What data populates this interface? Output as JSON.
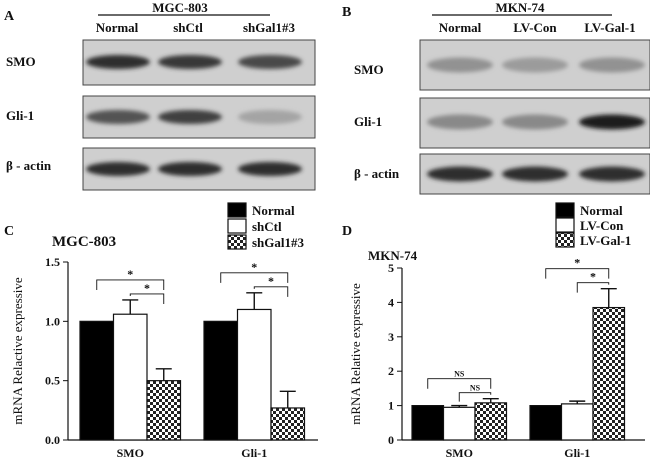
{
  "panelA": {
    "letter": "A",
    "cell_line": "MGC-803",
    "lanes": [
      "Normal",
      "shCtl",
      "shGal1#3"
    ],
    "rows": [
      "SMO",
      "Gli-1",
      "β - actin"
    ],
    "band_intensity": [
      [
        0.85,
        0.8,
        0.7
      ],
      [
        0.65,
        0.75,
        0.2
      ],
      [
        0.85,
        0.85,
        0.85
      ]
    ]
  },
  "panelB": {
    "letter": "B",
    "cell_line": "MKN-74",
    "lanes": [
      "Normal",
      "LV-Con",
      "LV-Gal-1"
    ],
    "rows": [
      "SMO",
      "Gli-1",
      "β - actin"
    ],
    "band_intensity": [
      [
        0.3,
        0.25,
        0.3
      ],
      [
        0.35,
        0.35,
        0.95
      ],
      [
        0.85,
        0.85,
        0.85
      ]
    ]
  },
  "chart_data": [
    {
      "type": "bar",
      "panel": "C",
      "title": "MGC-803",
      "ylabel": "mRNA Relactive expressive",
      "xlabel": "",
      "categories": [
        "SMO",
        "Gli-1"
      ],
      "series": [
        {
          "name": "Normal",
          "values": [
            1.0,
            1.0
          ],
          "errors": [
            0,
            0
          ]
        },
        {
          "name": "shCtl",
          "values": [
            1.06,
            1.1
          ],
          "errors": [
            0.12,
            0.14
          ]
        },
        {
          "name": "shGal1#3",
          "values": [
            0.5,
            0.27
          ],
          "errors": [
            0.1,
            0.14
          ]
        }
      ],
      "ylim": [
        0,
        1.5
      ],
      "yticks": [
        "0.0",
        "0.5",
        "1.0",
        "1.5"
      ],
      "significance": [
        {
          "category": 0,
          "pairs": [
            [
              0,
              2,
              "*"
            ],
            [
              1,
              2,
              "*"
            ]
          ]
        },
        {
          "category": 1,
          "pairs": [
            [
              0,
              2,
              "*"
            ],
            [
              1,
              2,
              "*"
            ]
          ]
        }
      ],
      "legend": "top-right"
    },
    {
      "type": "bar",
      "panel": "D",
      "title": "MKN-74",
      "ylabel": "mRNA Relative expressive",
      "xlabel": "",
      "categories": [
        "SMO",
        "Gli-1"
      ],
      "series": [
        {
          "name": "Normal",
          "values": [
            1.0,
            1.0
          ],
          "errors": [
            0,
            0
          ]
        },
        {
          "name": "LV-Con",
          "values": [
            0.95,
            1.05
          ],
          "errors": [
            0.05,
            0.08
          ]
        },
        {
          "name": "LV-Gal-1",
          "values": [
            1.08,
            3.85
          ],
          "errors": [
            0.12,
            0.55
          ]
        }
      ],
      "ylim": [
        0,
        5
      ],
      "yticks": [
        "0",
        "1",
        "2",
        "3",
        "4",
        "5"
      ],
      "significance": [
        {
          "category": 0,
          "pairs": [
            [
              0,
              2,
              "NS"
            ],
            [
              1,
              2,
              "NS"
            ]
          ]
        },
        {
          "category": 1,
          "pairs": [
            [
              0,
              2,
              "*"
            ],
            [
              1,
              2,
              "*"
            ]
          ]
        }
      ],
      "legend": "top-right"
    }
  ],
  "colors": {
    "black": "#000000",
    "white": "#ffffff",
    "hatch": "#333333"
  }
}
